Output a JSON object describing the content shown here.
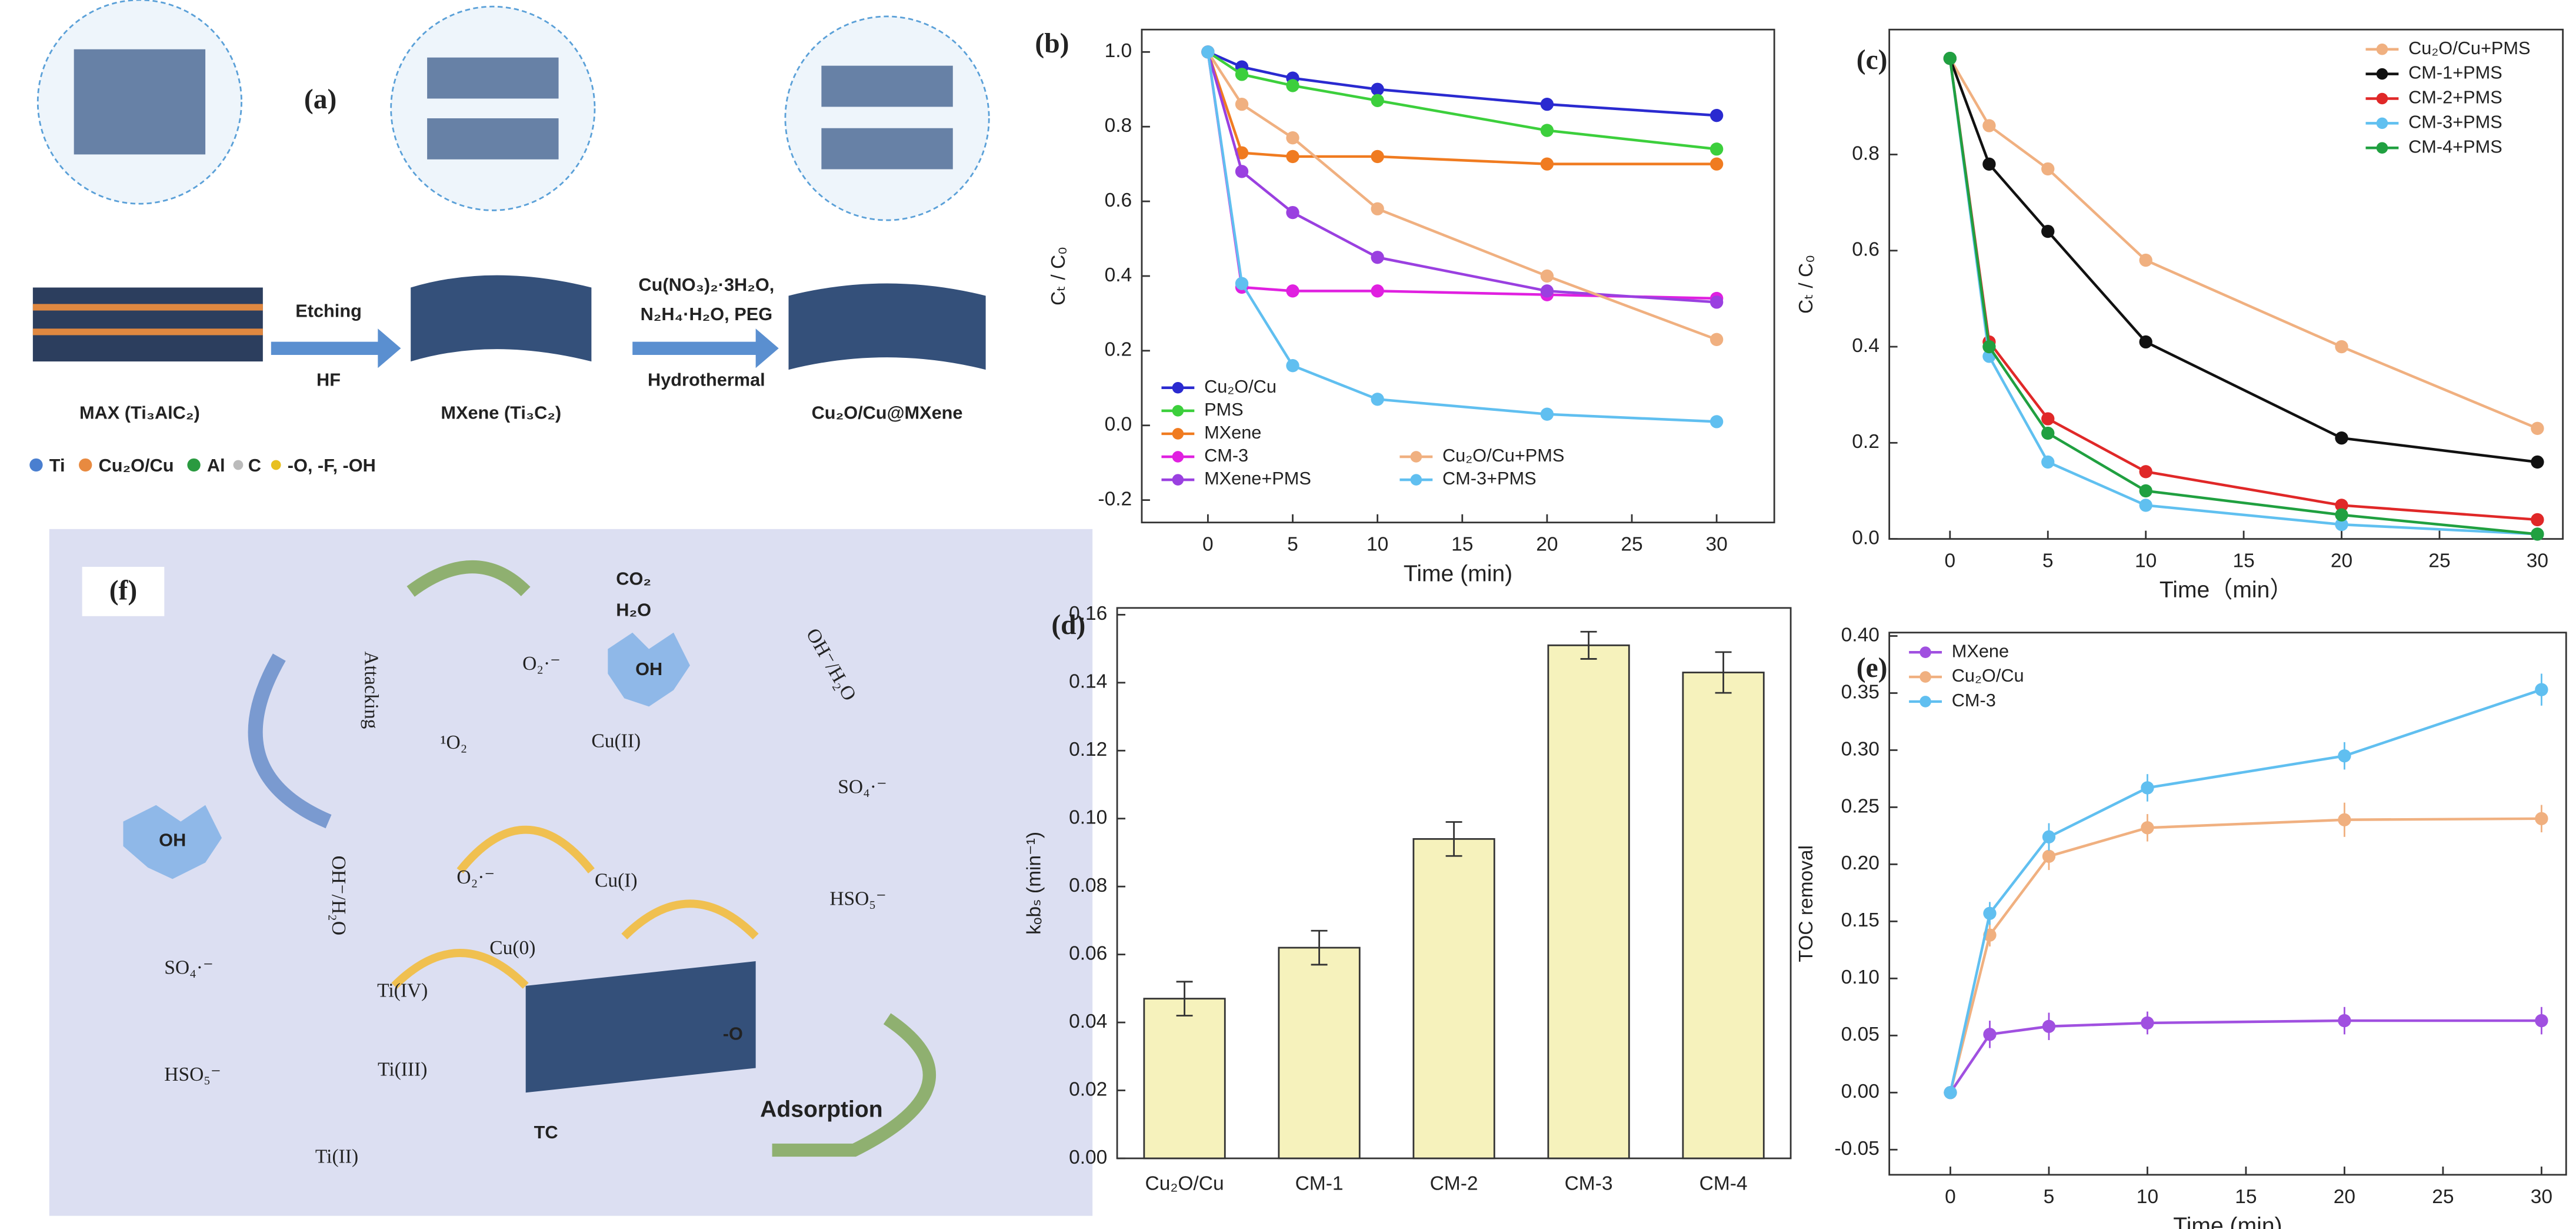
{
  "panel_a": {
    "label": "(a)",
    "arrow1_top": "Etching",
    "arrow1_bottom": "HF",
    "arrow2_line1": "Cu(NO₃)₂·3H₂O,",
    "arrow2_line2": "N₂H₄·H₂O, PEG",
    "arrow2_bottom": "Hydrothermal",
    "stage1": "MAX (Ti₃AlC₂)",
    "stage2": "MXene (Ti₃C₂)",
    "stage3": "Cu₂O/Cu@MXene",
    "legend": [
      "Ti",
      "Cu₂O/Cu",
      "Al",
      "C",
      "-O, -F, -OH"
    ]
  },
  "panel_f": {
    "label": "(f)",
    "co2": "CO₂",
    "h2o": "H₂O",
    "attacking": "Attacking",
    "o2_radical_top": "O₂·⁻",
    "oh_top": "OH",
    "oh_h2o_top": "OH⁻/H₂O",
    "singlet_o2": "¹O₂",
    "cu2": "Cu(II)",
    "so4_top": "SO₄·⁻",
    "o2_radical_mid": "O₂·⁻",
    "cu1": "Cu(I)",
    "hso5_top": "HSO₅⁻",
    "oh_left": "OH",
    "oh_h2o_left": "OH⁻/H₂O",
    "cu0": "Cu(0)",
    "so4_left": "SO₄·⁻",
    "ti4": "Ti(IV)",
    "ti3": "Ti(III)",
    "hso5_left": "HSO₅⁻",
    "ti2": "Ti(II)",
    "tc": "TC",
    "adsorption": "Adsorption",
    "o_site": "-O"
  },
  "chart_data": [
    {
      "type": "line",
      "label": "(b)",
      "x_label": "Time (min)",
      "y_label": "Cₜ / C₀",
      "x": [
        0,
        2,
        5,
        10,
        20,
        30
      ],
      "xlim": [
        -3.9,
        33.4
      ],
      "xticks": [
        0,
        5,
        10,
        15,
        20,
        25,
        30
      ],
      "ylim": [
        -0.26,
        1.06
      ],
      "yticks": [
        {
          "value": -0.2,
          "label": "-0.2"
        },
        {
          "value": 0,
          "label": "0.0"
        },
        0.2,
        0.4,
        0.6,
        0.8,
        {
          "value": 1,
          "label": "1.0"
        }
      ],
      "legend": "lower left",
      "series": [
        {
          "name": "Cu₂O/Cu",
          "color": "#2a2ad0",
          "values": [
            1.0,
            0.96,
            0.93,
            0.9,
            0.86,
            0.83
          ]
        },
        {
          "name": "PMS",
          "color": "#3ccf3c",
          "values": [
            1.0,
            0.94,
            0.91,
            0.87,
            0.79,
            0.74
          ]
        },
        {
          "name": "MXene",
          "color": "#f07b20",
          "values": [
            1.0,
            0.73,
            0.72,
            0.72,
            0.7,
            0.7
          ]
        },
        {
          "name": "CM-3",
          "color": "#e020e0",
          "values": [
            1.0,
            0.37,
            0.36,
            0.36,
            0.35,
            0.34
          ]
        },
        {
          "name": "MXene+PMS",
          "color": "#9a40e0",
          "values": [
            1.0,
            0.68,
            0.57,
            0.45,
            0.36,
            0.33
          ]
        },
        {
          "name": "Cu₂O/Cu+PMS",
          "color": "#f0b080",
          "values": [
            1.0,
            0.86,
            0.77,
            0.58,
            0.4,
            0.23
          ]
        },
        {
          "name": "CM-3+PMS",
          "color": "#60bff0",
          "values": [
            1.0,
            0.38,
            0.16,
            0.07,
            0.03,
            0.01
          ]
        }
      ]
    },
    {
      "type": "line",
      "label": "(c)",
      "x_label": "Time（min）",
      "y_label": "Cₜ / C₀",
      "x": [
        0,
        2,
        5,
        10,
        20,
        30
      ],
      "xlim": [
        -3.1,
        31.3
      ],
      "xticks": [
        0,
        5,
        10,
        15,
        20,
        25,
        30
      ],
      "ylim": [
        0,
        1.06
      ],
      "yticks": [
        {
          "value": 0,
          "label": "0.0"
        },
        0.2,
        0.4,
        0.6,
        0.8
      ],
      "legend": "upper right",
      "series": [
        {
          "name": "Cu₂O/Cu+PMS",
          "color": "#f0b080",
          "values": [
            1.0,
            0.86,
            0.77,
            0.58,
            0.4,
            0.23
          ]
        },
        {
          "name": "CM-1+PMS",
          "color": "#111111",
          "values": [
            1.0,
            0.78,
            0.64,
            0.41,
            0.21,
            0.16
          ]
        },
        {
          "name": "CM-2+PMS",
          "color": "#e02828",
          "values": [
            1.0,
            0.41,
            0.25,
            0.14,
            0.07,
            0.04
          ]
        },
        {
          "name": "CM-3+PMS",
          "color": "#60c0f0",
          "values": [
            1.0,
            0.38,
            0.16,
            0.07,
            0.03,
            0.01
          ]
        },
        {
          "name": "CM-4+PMS",
          "color": "#20a040",
          "values": [
            1.0,
            0.4,
            0.22,
            0.1,
            0.05,
            0.01
          ]
        }
      ]
    },
    {
      "type": "bar",
      "label": "(d)",
      "y_label": "kₒbₛ (min⁻¹)",
      "categories": [
        "Cu₂O/Cu",
        "CM-1",
        "CM-2",
        "CM-3",
        "CM-4"
      ],
      "values": [
        0.047,
        0.062,
        0.094,
        0.151,
        0.143
      ],
      "errors": [
        0.005,
        0.005,
        0.005,
        0.004,
        0.006
      ],
      "color": "#f6f2bc",
      "ylim": [
        0,
        0.162
      ],
      "yticks": [
        {
          "value": 0,
          "label": "0.00"
        },
        0.02,
        0.04,
        0.06,
        0.08,
        {
          "value": 0.1,
          "label": "0.10"
        },
        0.12,
        0.14,
        0.16
      ]
    },
    {
      "type": "line",
      "label": "(e)",
      "x_label": "Time (min)",
      "y_label": "TOC removal",
      "x": [
        0,
        2,
        5,
        10,
        20,
        30
      ],
      "xlim": [
        -3.1,
        31.25
      ],
      "xticks": [
        0,
        5,
        10,
        15,
        20,
        25,
        30
      ],
      "ylim": [
        -0.072,
        0.403
      ],
      "yticks": [
        -0.05,
        {
          "value": 0,
          "label": "0.00"
        },
        0.05,
        {
          "value": 0.1,
          "label": "0.10"
        },
        0.15,
        {
          "value": 0.2,
          "label": "0.20"
        },
        0.25,
        {
          "value": 0.3,
          "label": "0.30"
        },
        0.35,
        {
          "value": 0.4,
          "label": "0.40"
        }
      ],
      "legend": "upper left",
      "series": [
        {
          "name": "MXene",
          "color": "#a050e0",
          "values": [
            0,
            0.051,
            0.058,
            0.061,
            0.063,
            0.063
          ],
          "errors": [
            0.002,
            0.012,
            0.012,
            0.01,
            0.012,
            0.012
          ]
        },
        {
          "name": "Cu₂O/Cu",
          "color": "#f0b080",
          "values": [
            0,
            0.138,
            0.207,
            0.232,
            0.239,
            0.24
          ],
          "errors": [
            0.002,
            0.01,
            0.012,
            0.012,
            0.015,
            0.012
          ]
        },
        {
          "name": "CM-3",
          "color": "#60bff0",
          "values": [
            0,
            0.157,
            0.224,
            0.267,
            0.295,
            0.353
          ],
          "errors": [
            0.002,
            0.01,
            0.012,
            0.012,
            0.012,
            0.014
          ]
        }
      ]
    }
  ]
}
